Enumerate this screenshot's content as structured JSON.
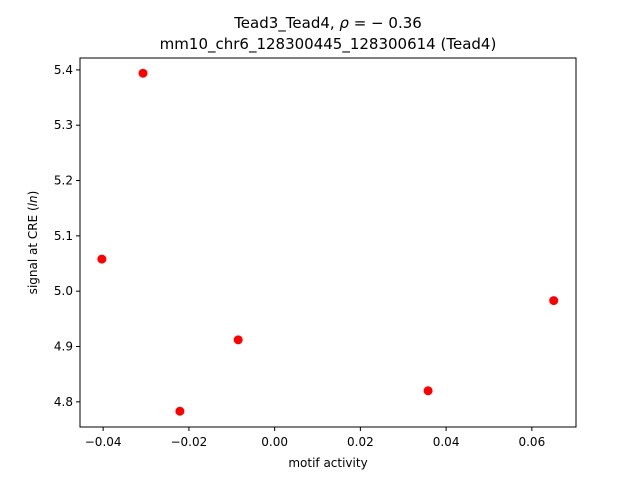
{
  "chart_data": {
    "type": "scatter",
    "title_line1_prefix": "Tead3_Tead4, ",
    "title_rho_symbol": "ρ",
    "title_rho_value": " = − 0.36",
    "title_line2": "mm10_chr6_128300445_128300614 (Tead4)",
    "xlabel": "motif activity",
    "ylabel_prefix": "signal at CRE (",
    "ylabel_italic": "ln",
    "ylabel_suffix": ")",
    "xlim": [
      -0.0454,
      0.0703
    ],
    "ylim": [
      4.7545,
      5.4215
    ],
    "x_ticks": [
      -0.04,
      -0.02,
      0.0,
      0.02,
      0.04,
      0.06
    ],
    "x_tick_labels": [
      "−0.04",
      "−0.02",
      "0.00",
      "0.02",
      "0.04",
      "0.06"
    ],
    "y_ticks": [
      4.8,
      4.9,
      5.0,
      5.1,
      5.2,
      5.3,
      5.4
    ],
    "y_tick_labels": [
      "4.8",
      "4.9",
      "5.0",
      "5.1",
      "5.2",
      "5.3",
      "5.4"
    ],
    "grid": false,
    "marker_color": "#ff0000",
    "points": [
      {
        "x": -0.0403,
        "y": 5.058
      },
      {
        "x": -0.0307,
        "y": 5.394
      },
      {
        "x": -0.0221,
        "y": 4.783
      },
      {
        "x": -0.0085,
        "y": 4.912
      },
      {
        "x": 0.0358,
        "y": 4.82
      },
      {
        "x": 0.0651,
        "y": 4.983
      }
    ]
  }
}
